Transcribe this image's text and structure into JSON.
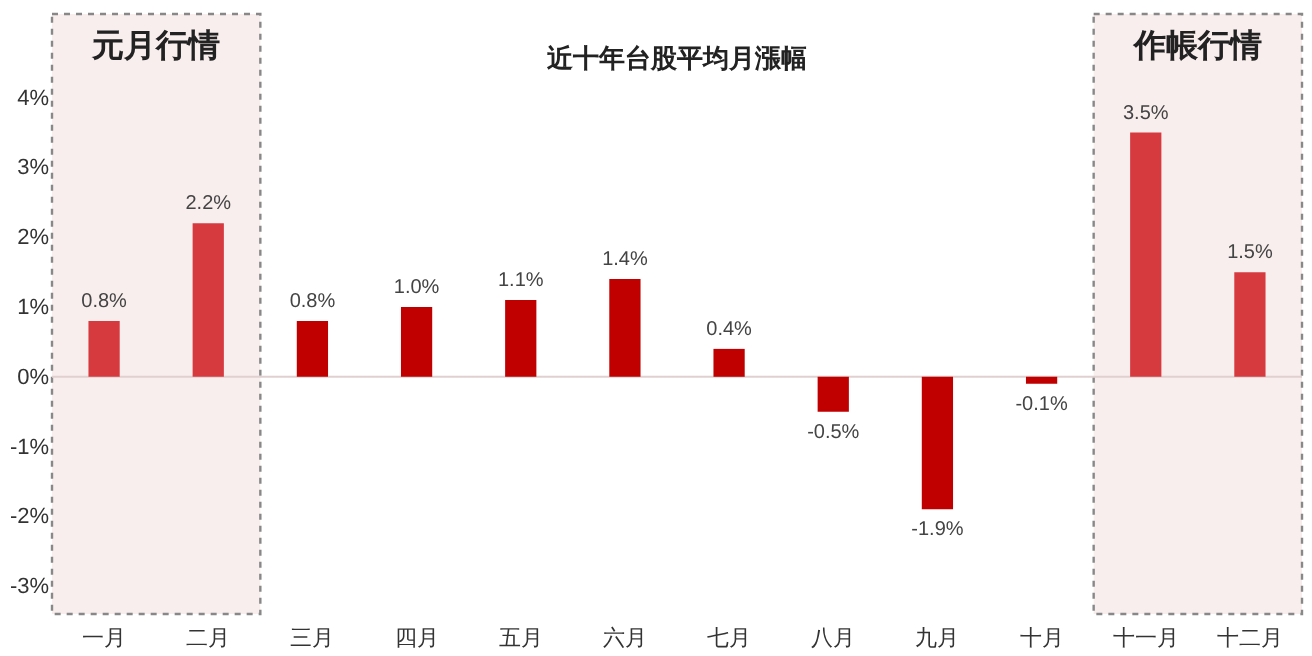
{
  "chart_data": {
    "type": "bar",
    "title": "近十年台股平均月漲幅",
    "categories": [
      "一月",
      "二月",
      "三月",
      "四月",
      "五月",
      "六月",
      "七月",
      "八月",
      "九月",
      "十月",
      "十一月",
      "十二月"
    ],
    "values": [
      0.8,
      2.2,
      0.8,
      1.0,
      1.1,
      1.4,
      0.4,
      -0.5,
      -1.9,
      -0.1,
      3.5,
      1.5
    ],
    "colors": [
      "#d63a3f",
      "#d63a3f",
      "#c00000",
      "#c00000",
      "#c00000",
      "#c00000",
      "#c00000",
      "#c00000",
      "#c00000",
      "#c00000",
      "#d63a3f",
      "#d63a3f"
    ],
    "value_labels": [
      "0.8%",
      "2.2%",
      "0.8%",
      "1.0%",
      "1.1%",
      "1.4%",
      "0.4%",
      "-0.5%",
      "-1.9%",
      "-0.1%",
      "3.5%",
      "1.5%"
    ],
    "ylim": [
      -3.4,
      5.2
    ],
    "yticks": [
      {
        "value": -3,
        "label": "-3%"
      },
      {
        "value": -2,
        "label": "-2%"
      },
      {
        "value": -1,
        "label": "-1%"
      },
      {
        "value": 0,
        "label": "0%"
      },
      {
        "value": 1,
        "label": "1%"
      },
      {
        "value": 2,
        "label": "2%"
      },
      {
        "value": 3,
        "label": "3%"
      },
      {
        "value": 4,
        "label": "4%"
      }
    ],
    "bands": [
      {
        "axis": "x",
        "from": "一月",
        "to": "二月",
        "label": "元月行情",
        "color": "#f9eeee"
      },
      {
        "axis": "x",
        "from": "十一月",
        "to": "十二月",
        "label": "作帳行情",
        "color": "#f9eeee"
      }
    ],
    "ref_lines": [
      {
        "axis": "y",
        "value": 0,
        "color": "#e0d0d0"
      }
    ],
    "grid": false
  }
}
